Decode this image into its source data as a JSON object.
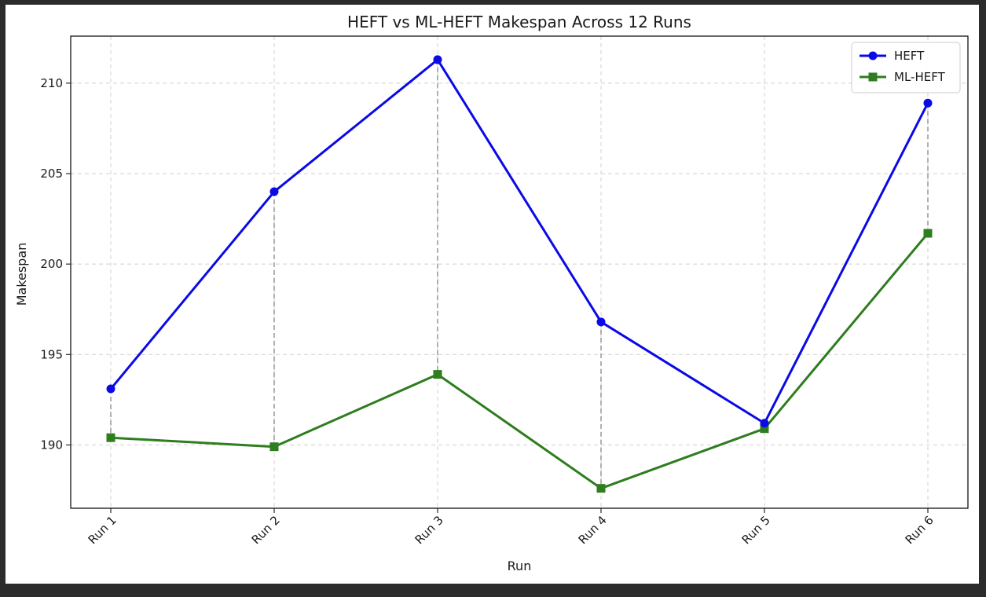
{
  "chart_data": {
    "type": "line",
    "title": "HEFT vs ML-HEFT Makespan Across 12 Runs",
    "xlabel": "Run",
    "ylabel": "Makespan",
    "categories": [
      "Run 1",
      "Run 2",
      "Run 3",
      "Run 4",
      "Run 5",
      "Run 6"
    ],
    "ylim": [
      186.5,
      212.6
    ],
    "yticks": [
      190,
      195,
      200,
      205,
      210
    ],
    "grid": true,
    "legend_position": "top-right",
    "series": [
      {
        "name": "HEFT",
        "color": "#0a0ae6",
        "marker": "circle",
        "values": [
          193.1,
          204.0,
          211.3,
          196.8,
          191.2,
          208.9
        ]
      },
      {
        "name": "ML-HEFT",
        "color": "#2e7d1e",
        "marker": "square",
        "values": [
          190.4,
          189.9,
          193.9,
          187.6,
          190.9,
          201.7
        ]
      }
    ],
    "connectors": {
      "color": "#b0b0b0",
      "style": "dashed"
    }
  }
}
